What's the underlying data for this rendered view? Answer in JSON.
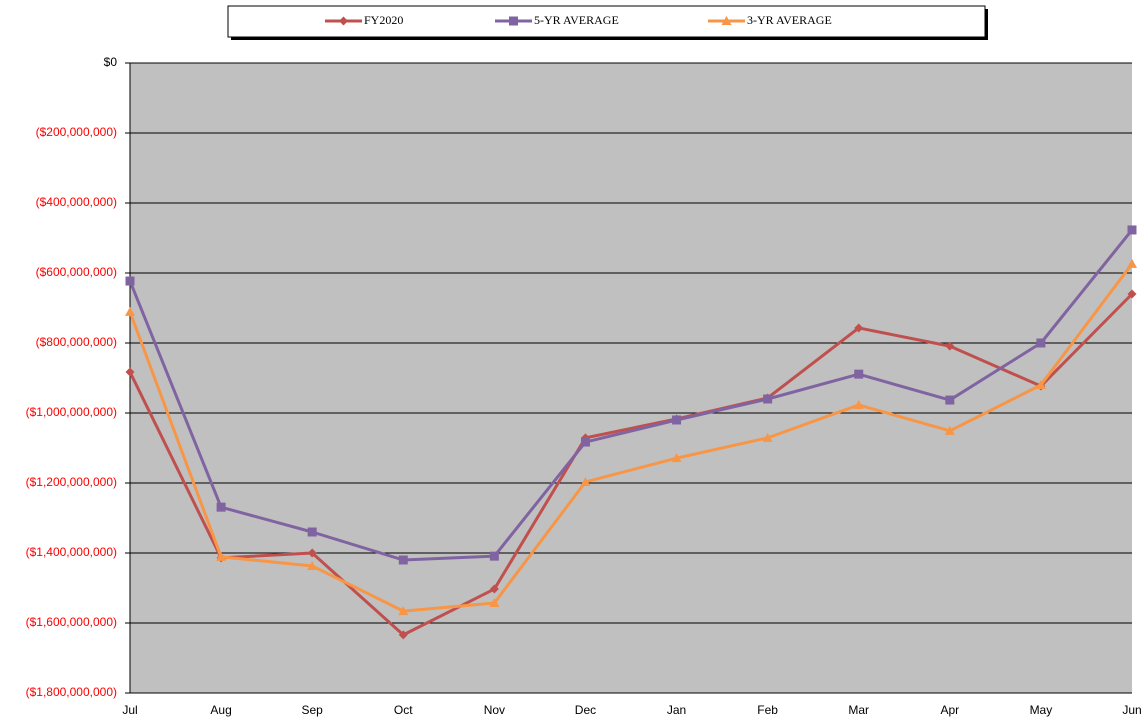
{
  "chart_data": {
    "type": "line",
    "categories": [
      "Jul",
      "Aug",
      "Sep",
      "Oct",
      "Nov",
      "Dec",
      "Jan",
      "Feb",
      "Mar",
      "Apr",
      "May",
      "Jun"
    ],
    "series": [
      {
        "name": "FY2020",
        "color": "#c0504d",
        "marker": "diamond",
        "values": [
          -883000000,
          -1414000000,
          -1400000000,
          -1634000000,
          -1503000000,
          -1071000000,
          -1017000000,
          -957000000,
          -757000000,
          -809000000,
          -923000000,
          -660000000
        ]
      },
      {
        "name": "5-YR AVERAGE",
        "color": "#8064a2",
        "marker": "square",
        "values": [
          -623000000,
          -1269000000,
          -1340000000,
          -1420000000,
          -1409000000,
          -1083000000,
          -1020000000,
          -960000000,
          -889000000,
          -963000000,
          -800000000,
          -477000000
        ]
      },
      {
        "name": "3-YR AVERAGE",
        "color": "#f79646",
        "marker": "triangle",
        "values": [
          -711000000,
          -1411000000,
          -1437000000,
          -1566000000,
          -1543000000,
          -1197000000,
          -1129000000,
          -1071000000,
          -977000000,
          -1051000000,
          -920000000,
          -574000000
        ]
      }
    ],
    "ylim": [
      -1800000000,
      0
    ],
    "yticks": [
      {
        "value": 0,
        "label": "$0"
      },
      {
        "value": -200000000,
        "label": "($200,000,000)"
      },
      {
        "value": -400000000,
        "label": "($400,000,000)"
      },
      {
        "value": -600000000,
        "label": "($600,000,000)"
      },
      {
        "value": -800000000,
        "label": "($800,000,000)"
      },
      {
        "value": -1000000000,
        "label": "($1,000,000,000)"
      },
      {
        "value": -1200000000,
        "label": "($1,200,000,000)"
      },
      {
        "value": -1400000000,
        "label": "($1,400,000,000)"
      },
      {
        "value": -1600000000,
        "label": "($1,600,000,000)"
      },
      {
        "value": -1800000000,
        "label": "($1,800,000,000)"
      }
    ],
    "grid": true,
    "plot_background": "#c0c0c0",
    "negative_label_color": "#ff0000",
    "legend": "top"
  }
}
